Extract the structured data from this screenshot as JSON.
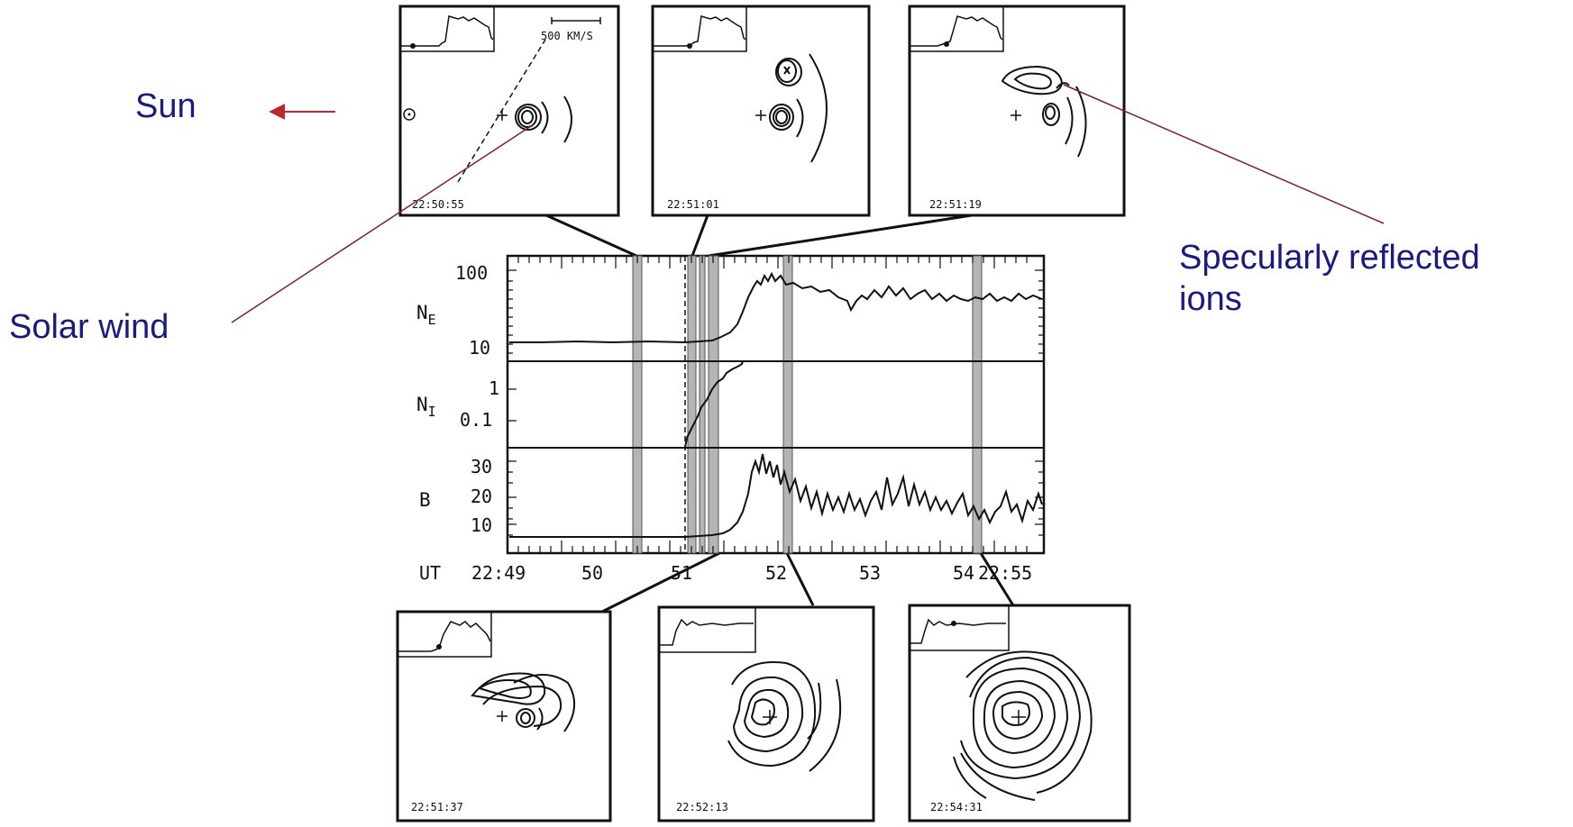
{
  "labels": {
    "sun": "Sun",
    "solar_wind": "Solar wind",
    "specular": "Specularly reflected\nions"
  },
  "scale_label": "500 KM/S",
  "panel_times": [
    "22:50:55",
    "22:51:01",
    "22:51:19",
    "22:51:37",
    "22:52:13",
    "22:54:31"
  ],
  "axes": {
    "ne": {
      "name": "N",
      "sub": "E",
      "ticks": [
        "100",
        "10"
      ]
    },
    "ni": {
      "name": "N",
      "sub": "I",
      "ticks": [
        "1",
        "0.1"
      ]
    },
    "b": {
      "name": "B",
      "ticks": [
        "30",
        "20",
        "10"
      ]
    },
    "ut": {
      "name": "UT",
      "ticks": [
        "22:49",
        "50",
        "51",
        "52",
        "53",
        "54",
        "22:55"
      ]
    }
  },
  "colors": {
    "label_text": "#1a1a80",
    "sun_arrow": "#c0262c",
    "pointer": "#7a1f3a",
    "shading": "#b5b5b5",
    "ink": "#111111"
  }
}
